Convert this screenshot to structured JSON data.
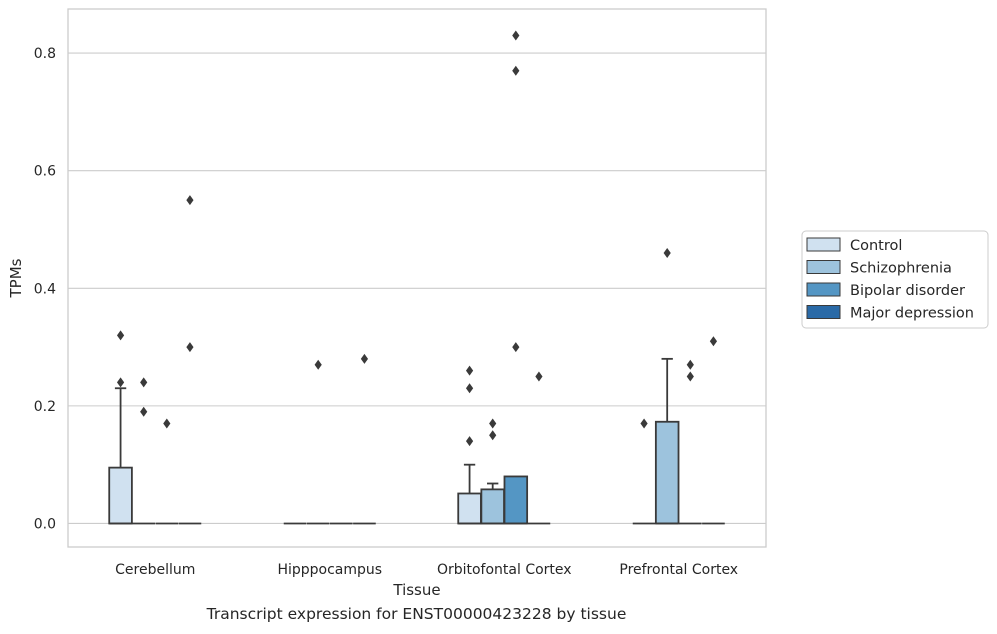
{
  "chart_data": {
    "type": "box",
    "caption": "Transcript expression for ENST00000423228 by tissue",
    "xlabel": "Tissue",
    "ylabel": "TPMs",
    "ylim": [
      -0.04,
      0.875
    ],
    "yticks": [
      0.0,
      0.2,
      0.4,
      0.6,
      0.8
    ],
    "ytick_labels": [
      "0.0",
      "0.2",
      "0.4",
      "0.6",
      "0.8"
    ],
    "grid": true,
    "legend_position": "right",
    "categories": [
      "Cerebellum",
      "Hipppocampus",
      "Orbitofontal Cortex",
      "Prefrontal Cortex"
    ],
    "series": [
      {
        "name": "Control",
        "color": "#d0e1f0",
        "boxes": [
          {
            "q1": 0.0,
            "median": 0.0,
            "q3": 0.095,
            "whisker_low": 0.0,
            "whisker_high": 0.23,
            "outliers": [
              0.24,
              0.32
            ]
          },
          {
            "q1": 0.0,
            "median": 0.0,
            "q3": 0.0,
            "whisker_low": 0.0,
            "whisker_high": 0.0,
            "outliers": []
          },
          {
            "q1": 0.0,
            "median": 0.0,
            "q3": 0.051,
            "whisker_low": 0.0,
            "whisker_high": 0.1,
            "outliers": [
              0.14,
              0.23,
              0.26
            ]
          },
          {
            "q1": 0.0,
            "median": 0.0,
            "q3": 0.0,
            "whisker_low": 0.0,
            "whisker_high": 0.0,
            "outliers": [
              0.17
            ]
          }
        ]
      },
      {
        "name": "Schizophrenia",
        "color": "#9dc3dd",
        "boxes": [
          {
            "q1": 0.0,
            "median": 0.0,
            "q3": 0.0,
            "whisker_low": 0.0,
            "whisker_high": 0.0,
            "outliers": [
              0.19,
              0.24
            ]
          },
          {
            "q1": 0.0,
            "median": 0.0,
            "q3": 0.0,
            "whisker_low": 0.0,
            "whisker_high": 0.0,
            "outliers": [
              0.27
            ]
          },
          {
            "q1": 0.0,
            "median": 0.0,
            "q3": 0.058,
            "whisker_low": 0.0,
            "whisker_high": 0.068,
            "outliers": [
              0.15,
              0.17
            ]
          },
          {
            "q1": 0.0,
            "median": 0.0,
            "q3": 0.173,
            "whisker_low": 0.0,
            "whisker_high": 0.28,
            "outliers": [
              0.46
            ]
          }
        ]
      },
      {
        "name": "Bipolar disorder",
        "color": "#5496c4",
        "boxes": [
          {
            "q1": 0.0,
            "median": 0.0,
            "q3": 0.0,
            "whisker_low": 0.0,
            "whisker_high": 0.0,
            "outliers": [
              0.17
            ]
          },
          {
            "q1": 0.0,
            "median": 0.0,
            "q3": 0.0,
            "whisker_low": 0.0,
            "whisker_high": 0.0,
            "outliers": []
          },
          {
            "q1": 0.0,
            "median": 0.0,
            "q3": 0.08,
            "whisker_low": 0.0,
            "whisker_high": 0.08,
            "outliers": [
              0.3,
              0.77,
              0.83
            ]
          },
          {
            "q1": 0.0,
            "median": 0.0,
            "q3": 0.0,
            "whisker_low": 0.0,
            "whisker_high": 0.0,
            "outliers": [
              0.25,
              0.27
            ]
          }
        ]
      },
      {
        "name": "Major depression",
        "color": "#2a6aa7",
        "boxes": [
          {
            "q1": 0.0,
            "median": 0.0,
            "q3": 0.0,
            "whisker_low": 0.0,
            "whisker_high": 0.0,
            "outliers": [
              0.3,
              0.55
            ]
          },
          {
            "q1": 0.0,
            "median": 0.0,
            "q3": 0.0,
            "whisker_low": 0.0,
            "whisker_high": 0.0,
            "outliers": [
              0.28
            ]
          },
          {
            "q1": 0.0,
            "median": 0.0,
            "q3": 0.0,
            "whisker_low": 0.0,
            "whisker_high": 0.0,
            "outliers": [
              0.25
            ]
          },
          {
            "q1": 0.0,
            "median": 0.0,
            "q3": 0.0,
            "whisker_low": 0.0,
            "whisker_high": 0.0,
            "outliers": [
              0.31
            ]
          }
        ]
      }
    ]
  }
}
